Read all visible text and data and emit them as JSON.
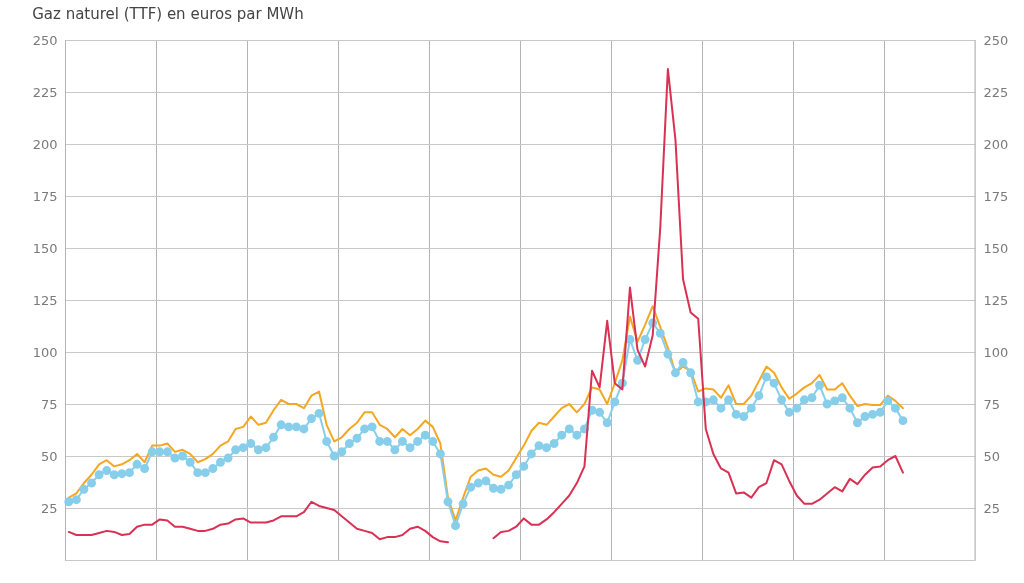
{
  "chart_data": {
    "type": "line",
    "title": "Gaz naturel (TTF) en euros par MWh",
    "categories": [
      null,
      null,
      null,
      null,
      null,
      null,
      null,
      null,
      null,
      null,
      null,
      null,
      null,
      null,
      null,
      null,
      null,
      null,
      null,
      null,
      null,
      null,
      null,
      null,
      null,
      null,
      null,
      null,
      null,
      null,
      null,
      null,
      null,
      null,
      null,
      null,
      null,
      null,
      null,
      null,
      null,
      null,
      null,
      null,
      null,
      null,
      null,
      null,
      null,
      null,
      null,
      null,
      null,
      null,
      null,
      null,
      null,
      null,
      null,
      null,
      null,
      null,
      null,
      null,
      null,
      null,
      null,
      null,
      null,
      null,
      null,
      null,
      null,
      null,
      null,
      null,
      null,
      null,
      null,
      null,
      null,
      null,
      null,
      null,
      null,
      null,
      null,
      null,
      null,
      null,
      null,
      null,
      null,
      null,
      null,
      null,
      null,
      null,
      null,
      null,
      null,
      null,
      null,
      null,
      null,
      null,
      null,
      null,
      null,
      null,
      null,
      null,
      null,
      null,
      null,
      null,
      null,
      null,
      null,
      null
    ],
    "series": [
      {
        "color": "#f5a623",
        "values": [
          30,
          32,
          37,
          41,
          46,
          48,
          45,
          46,
          48,
          51,
          47,
          55,
          55,
          56,
          52,
          53,
          51,
          47,
          48.5,
          51,
          55,
          57,
          63,
          64,
          69,
          65,
          66,
          72,
          77,
          75,
          75,
          73,
          79,
          81,
          65,
          57,
          59,
          63,
          66,
          71,
          71,
          65,
          63,
          59,
          63,
          60,
          63,
          67,
          64,
          56,
          30,
          19,
          30,
          40,
          43,
          44,
          41,
          40,
          43,
          49,
          55,
          62,
          66,
          65,
          69,
          73,
          75,
          71,
          75,
          83,
          82,
          75,
          85,
          96,
          117,
          105,
          113,
          122,
          112,
          102,
          90,
          93,
          91,
          81,
          82.5,
          82,
          78,
          84,
          75,
          75,
          79,
          86,
          93,
          90,
          83,
          77.5,
          80,
          83,
          85,
          89,
          82,
          82,
          85,
          79,
          74,
          75,
          74.5,
          74.5,
          79,
          76.5,
          73,
          null,
          null,
          null,
          null,
          null,
          null,
          null,
          null,
          null
        ]
      },
      {
        "color": "#87ceeb",
        "marker": "circle",
        "values": [
          28,
          29,
          34,
          37,
          41,
          43,
          41,
          41.5,
          42,
          46,
          44,
          52,
          52,
          52,
          49,
          50,
          47,
          42,
          42,
          44,
          47,
          49,
          53,
          54,
          56,
          53,
          54,
          59,
          65,
          64,
          64,
          63,
          68,
          70.5,
          57,
          50,
          52,
          56,
          58.5,
          63,
          64,
          57,
          57,
          53,
          57,
          54,
          57,
          60,
          57,
          51,
          28,
          16.5,
          27,
          35,
          37,
          38,
          34.5,
          34,
          36,
          41,
          45,
          51,
          55,
          54,
          56,
          60,
          63,
          60,
          63,
          72,
          71,
          66,
          76,
          85,
          106,
          96,
          106,
          114,
          109,
          99,
          90,
          95,
          90,
          76,
          76,
          77,
          73,
          77,
          70,
          69,
          73,
          79,
          88,
          85,
          77,
          71,
          73,
          77,
          78,
          84,
          75,
          76.5,
          78,
          73,
          66,
          69,
          70,
          71,
          76.5,
          73,
          67,
          null,
          null,
          null,
          null,
          null,
          null,
          null,
          null,
          null
        ]
      },
      {
        "color": "#d93153",
        "values": [
          13.5,
          12,
          12,
          12,
          13,
          14,
          13.5,
          12,
          12.5,
          16,
          17,
          17,
          19.5,
          19,
          16,
          16,
          15,
          14,
          14,
          15,
          17,
          17.5,
          19.5,
          20,
          18,
          18,
          18,
          19,
          21,
          21,
          21,
          23,
          28,
          26,
          25,
          24,
          21,
          18,
          15,
          14,
          13,
          10,
          11,
          11,
          12,
          15,
          16,
          14,
          11,
          9,
          8.5,
          null,
          null,
          null,
          null,
          null,
          10.5,
          13.5,
          14,
          16,
          20,
          17,
          17,
          19.5,
          23,
          27,
          31,
          37,
          45,
          91,
          83,
          115,
          85,
          82,
          131,
          101,
          93,
          108,
          160,
          236,
          202,
          135,
          119,
          116,
          63,
          51,
          44,
          42,
          32,
          32.5,
          30,
          35,
          37,
          48,
          46,
          38,
          31,
          27,
          27,
          29,
          32,
          35,
          33,
          39,
          36.5,
          41,
          44.5,
          45,
          48,
          50,
          42,
          null,
          null,
          null,
          null,
          null,
          null,
          null,
          null,
          null
        ]
      }
    ],
    "ylim": [
      0,
      250
    ],
    "yticks": [
      25,
      50,
      75,
      100,
      125,
      150,
      175,
      200,
      225,
      250
    ],
    "y2lim": [
      0,
      250
    ],
    "y2ticks": [
      25,
      50,
      75,
      100,
      125,
      150,
      175,
      200,
      225,
      250
    ],
    "grid": true,
    "marker": "none",
    "line_style": "solid"
  }
}
